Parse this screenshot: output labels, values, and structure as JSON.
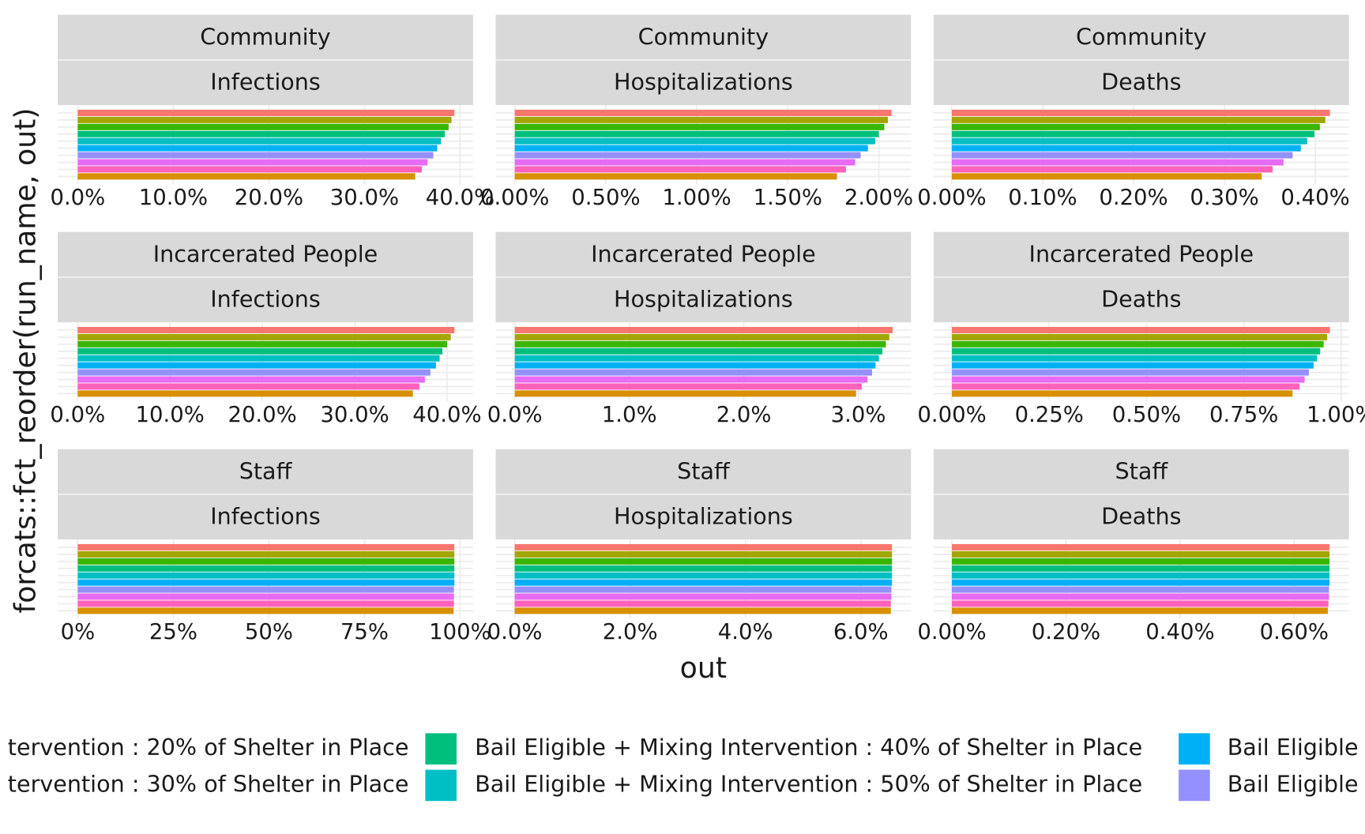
{
  "chart_data": [
    {
      "type": "bar",
      "strips": [
        "Community",
        "Infections"
      ],
      "categories": [
        null,
        null,
        null,
        null,
        null,
        null,
        null,
        null,
        null,
        null
      ],
      "values": [
        39.4,
        39.1,
        38.8,
        38.4,
        38.0,
        37.6,
        37.2,
        36.6,
        36.0,
        35.3
      ],
      "xlim": [
        -2.09,
        41.36
      ],
      "xticks": [
        {
          "value": 0,
          "label": "0.0%"
        },
        {
          "value": 10,
          "label": "10.0%"
        },
        {
          "value": 20,
          "label": "20.0%"
        },
        {
          "value": 30,
          "label": "30.0%"
        },
        {
          "value": 40,
          "label": "40.0%"
        }
      ]
    },
    {
      "type": "bar",
      "strips": [
        "Community",
        "Hospitalizations"
      ],
      "categories": [
        null,
        null,
        null,
        null,
        null,
        null,
        null,
        null,
        null,
        null
      ],
      "values": [
        2.07,
        2.05,
        2.03,
        2.0,
        1.98,
        1.94,
        1.9,
        1.87,
        1.82,
        1.77
      ],
      "xlim": [
        -0.105,
        2.177
      ],
      "xticks": [
        {
          "value": 0,
          "label": "0.00%"
        },
        {
          "value": 0.5,
          "label": "0.50%"
        },
        {
          "value": 1,
          "label": "1.00%"
        },
        {
          "value": 1.5,
          "label": "1.50%"
        },
        {
          "value": 2,
          "label": "2.00%"
        }
      ]
    },
    {
      "type": "bar",
      "strips": [
        "Community",
        "Deaths"
      ],
      "categories": [
        null,
        null,
        null,
        null,
        null,
        null,
        null,
        null,
        null,
        null
      ],
      "values": [
        0.416,
        0.411,
        0.405,
        0.399,
        0.391,
        0.384,
        0.375,
        0.365,
        0.353,
        0.341
      ],
      "xlim": [
        -0.02,
        0.437
      ],
      "xticks": [
        {
          "value": 0,
          "label": "0.00%"
        },
        {
          "value": 0.1,
          "label": "0.10%"
        },
        {
          "value": 0.2,
          "label": "0.20%"
        },
        {
          "value": 0.3,
          "label": "0.30%"
        },
        {
          "value": 0.4,
          "label": "0.40%"
        }
      ]
    },
    {
      "type": "bar",
      "strips": [
        "Incarcerated People",
        "Infections"
      ],
      "categories": [
        null,
        null,
        null,
        null,
        null,
        null,
        null,
        null,
        null,
        null
      ],
      "values": [
        40.8,
        40.4,
        40.0,
        39.5,
        39.2,
        38.8,
        38.2,
        37.6,
        37.0,
        36.3
      ],
      "xlim": [
        -2.16,
        42.82
      ],
      "xticks": [
        {
          "value": 0,
          "label": "0.0%"
        },
        {
          "value": 10,
          "label": "10.0%"
        },
        {
          "value": 20,
          "label": "20.0%"
        },
        {
          "value": 30,
          "label": "30.0%"
        },
        {
          "value": 40,
          "label": "40.0%"
        }
      ]
    },
    {
      "type": "bar",
      "strips": [
        "Incarcerated People",
        "Hospitalizations"
      ],
      "categories": [
        null,
        null,
        null,
        null,
        null,
        null,
        null,
        null,
        null,
        null
      ],
      "values": [
        3.3,
        3.27,
        3.24,
        3.21,
        3.18,
        3.15,
        3.12,
        3.08,
        3.03,
        2.98
      ],
      "xlim": [
        -0.167,
        3.46
      ],
      "xticks": [
        {
          "value": 0,
          "label": "0.0%"
        },
        {
          "value": 1,
          "label": "1.0%"
        },
        {
          "value": 2,
          "label": "2.0%"
        },
        {
          "value": 3,
          "label": "3.0%"
        }
      ]
    },
    {
      "type": "bar",
      "strips": [
        "Incarcerated People",
        "Deaths"
      ],
      "categories": [
        null,
        null,
        null,
        null,
        null,
        null,
        null,
        null,
        null,
        null
      ],
      "values": [
        0.971,
        0.964,
        0.955,
        0.946,
        0.938,
        0.929,
        0.917,
        0.906,
        0.893,
        0.875
      ],
      "xlim": [
        -0.047,
        1.02
      ],
      "xticks": [
        {
          "value": 0,
          "label": "0.00%"
        },
        {
          "value": 0.25,
          "label": "0.25%"
        },
        {
          "value": 0.5,
          "label": "0.50%"
        },
        {
          "value": 0.75,
          "label": "0.75%"
        },
        {
          "value": 1,
          "label": "1.00%"
        }
      ]
    },
    {
      "type": "bar",
      "strips": [
        "Staff",
        "Infections"
      ],
      "categories": [
        null,
        null,
        null,
        null,
        null,
        null,
        null,
        null,
        null,
        null
      ],
      "values": [
        98.5,
        98.5,
        98.5,
        98.5,
        98.5,
        98.5,
        98.4,
        98.4,
        98.4,
        98.3
      ],
      "xlim": [
        -5.23,
        103.4
      ],
      "xticks": [
        {
          "value": 0,
          "label": "0%"
        },
        {
          "value": 25,
          "label": "25%"
        },
        {
          "value": 50,
          "label": "50%"
        },
        {
          "value": 75,
          "label": "75%"
        },
        {
          "value": 100,
          "label": "100%"
        }
      ]
    },
    {
      "type": "bar",
      "strips": [
        "Staff",
        "Hospitalizations"
      ],
      "categories": [
        null,
        null,
        null,
        null,
        null,
        null,
        null,
        null,
        null,
        null
      ],
      "values": [
        6.54,
        6.54,
        6.54,
        6.54,
        6.54,
        6.54,
        6.53,
        6.53,
        6.52,
        6.52
      ],
      "xlim": [
        -0.33,
        6.87
      ],
      "xticks": [
        {
          "value": 0,
          "label": "0.0%"
        },
        {
          "value": 2,
          "label": "2.0%"
        },
        {
          "value": 4,
          "label": "4.0%"
        },
        {
          "value": 6,
          "label": "6.0%"
        }
      ]
    },
    {
      "type": "bar",
      "strips": [
        "Staff",
        "Deaths"
      ],
      "categories": [
        null,
        null,
        null,
        null,
        null,
        null,
        null,
        null,
        null,
        null
      ],
      "values": [
        0.662,
        0.662,
        0.662,
        0.662,
        0.662,
        0.662,
        0.661,
        0.661,
        0.66,
        0.659
      ],
      "xlim": [
        -0.032,
        0.696
      ],
      "xticks": [
        {
          "value": 0,
          "label": "0.00%"
        },
        {
          "value": 0.2,
          "label": "0.20%"
        },
        {
          "value": 0.4,
          "label": "0.40%"
        },
        {
          "value": 0.6,
          "label": "0.60%"
        }
      ]
    }
  ],
  "bar_colors": [
    "#F8766D",
    "#A3A500",
    "#39B600",
    "#00BF7D",
    "#00BFC4",
    "#00B0F6",
    "#9590FF",
    "#E76BF3",
    "#FF62BC",
    "#D89000"
  ],
  "x_label": "out",
  "y_label": "forcats::fct_reorder(run_name, out)",
  "legend": [
    {
      "name": "tervention : 20% of Shelter in Place",
      "color": "#A3A500"
    },
    {
      "name": "tervention : 30% of Shelter in Place",
      "color": "#39B600"
    },
    {
      "name": "Bail Eligible + Mixing Intervention : 40% of Shelter in Place",
      "color": "#00BF7D"
    },
    {
      "name": "Bail Eligible + Mixing Intervention : 50% of Shelter in Place",
      "color": "#00BFC4"
    },
    {
      "name": "Bail Eligible",
      "color": "#00B0F6"
    },
    {
      "name": "Bail Eligible",
      "color": "#9590FF"
    }
  ]
}
